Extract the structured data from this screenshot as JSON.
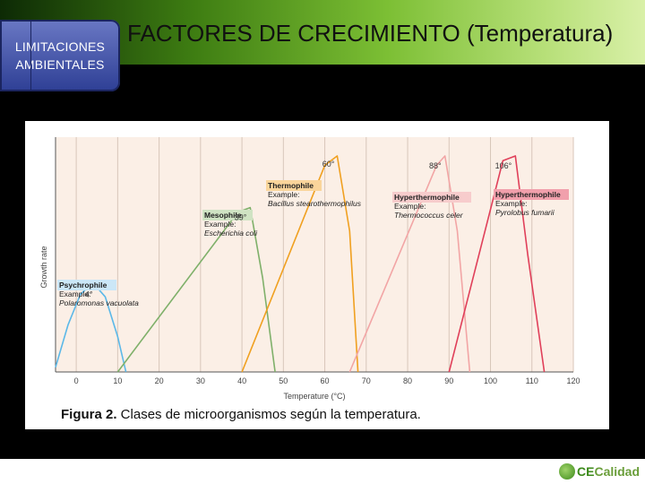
{
  "nav": {
    "label_line1": "LIMITACIONES",
    "label_line2": "AMBIENTALES"
  },
  "header": {
    "title": "FACTORES DE CRECIMIENTO (Temperatura)"
  },
  "caption": {
    "label": "Figura 2.",
    "text": " Clases de microorganismos según la temperatura."
  },
  "brand": {
    "mark": "CE",
    "rest": "Calidad"
  },
  "chart_data": {
    "type": "line",
    "xlabel": "Temperature (°C)",
    "ylabel": "Growth rate",
    "xlim": [
      -5,
      120
    ],
    "xticks": [
      0,
      10,
      20,
      30,
      40,
      50,
      60,
      70,
      80,
      90,
      100,
      110,
      120
    ],
    "grid": "vertical",
    "series": [
      {
        "name": "Psychrophile",
        "example_label": "Example:",
        "example": "Polaromonas vacuolata",
        "optimum_label": "4°",
        "color": "#5bb8e8",
        "label_bg": "#cbe7f7",
        "points": [
          [
            -5,
            0.02
          ],
          [
            -2,
            0.2
          ],
          [
            1,
            0.33
          ],
          [
            4,
            0.38
          ],
          [
            7,
            0.32
          ],
          [
            10,
            0.15
          ],
          [
            12,
            0.0
          ]
        ]
      },
      {
        "name": "Mesophile",
        "example_label": "Example:",
        "example": "Escherichia coli",
        "optimum_label": "39°",
        "color": "#7fb06a",
        "label_bg": "#cfe3c3",
        "points": [
          [
            10,
            0.0
          ],
          [
            39,
            0.68
          ],
          [
            42,
            0.7
          ],
          [
            45,
            0.4
          ],
          [
            48,
            0.0
          ]
        ]
      },
      {
        "name": "Thermophile",
        "example_label": "Example:",
        "example": "Bacillus stearothermophilus",
        "optimum_label": "60°",
        "color": "#f0a020",
        "label_bg": "#fad59b",
        "points": [
          [
            40,
            0.0
          ],
          [
            60,
            0.88
          ],
          [
            63,
            0.92
          ],
          [
            66,
            0.6
          ],
          [
            68,
            0.0
          ]
        ]
      },
      {
        "name": "Hyperthermophile",
        "example_label": "Example:",
        "example": "Thermococcus celer",
        "optimum_label": "88°",
        "color": "#f2a5a5",
        "label_bg": "#f7cccc",
        "points": [
          [
            66,
            0.0
          ],
          [
            87,
            0.88
          ],
          [
            89,
            0.92
          ],
          [
            92,
            0.6
          ],
          [
            95,
            0.0
          ]
        ]
      },
      {
        "name": "Hyperthermophile",
        "example_label": "Example:",
        "example": "Pyrolobus fumarii",
        "optimum_label": "106°",
        "color": "#e0405a",
        "label_bg": "#f1a0ac",
        "points": [
          [
            90,
            0.0
          ],
          [
            103,
            0.9
          ],
          [
            106,
            0.92
          ],
          [
            109,
            0.5
          ],
          [
            113,
            0.0
          ]
        ]
      }
    ]
  }
}
